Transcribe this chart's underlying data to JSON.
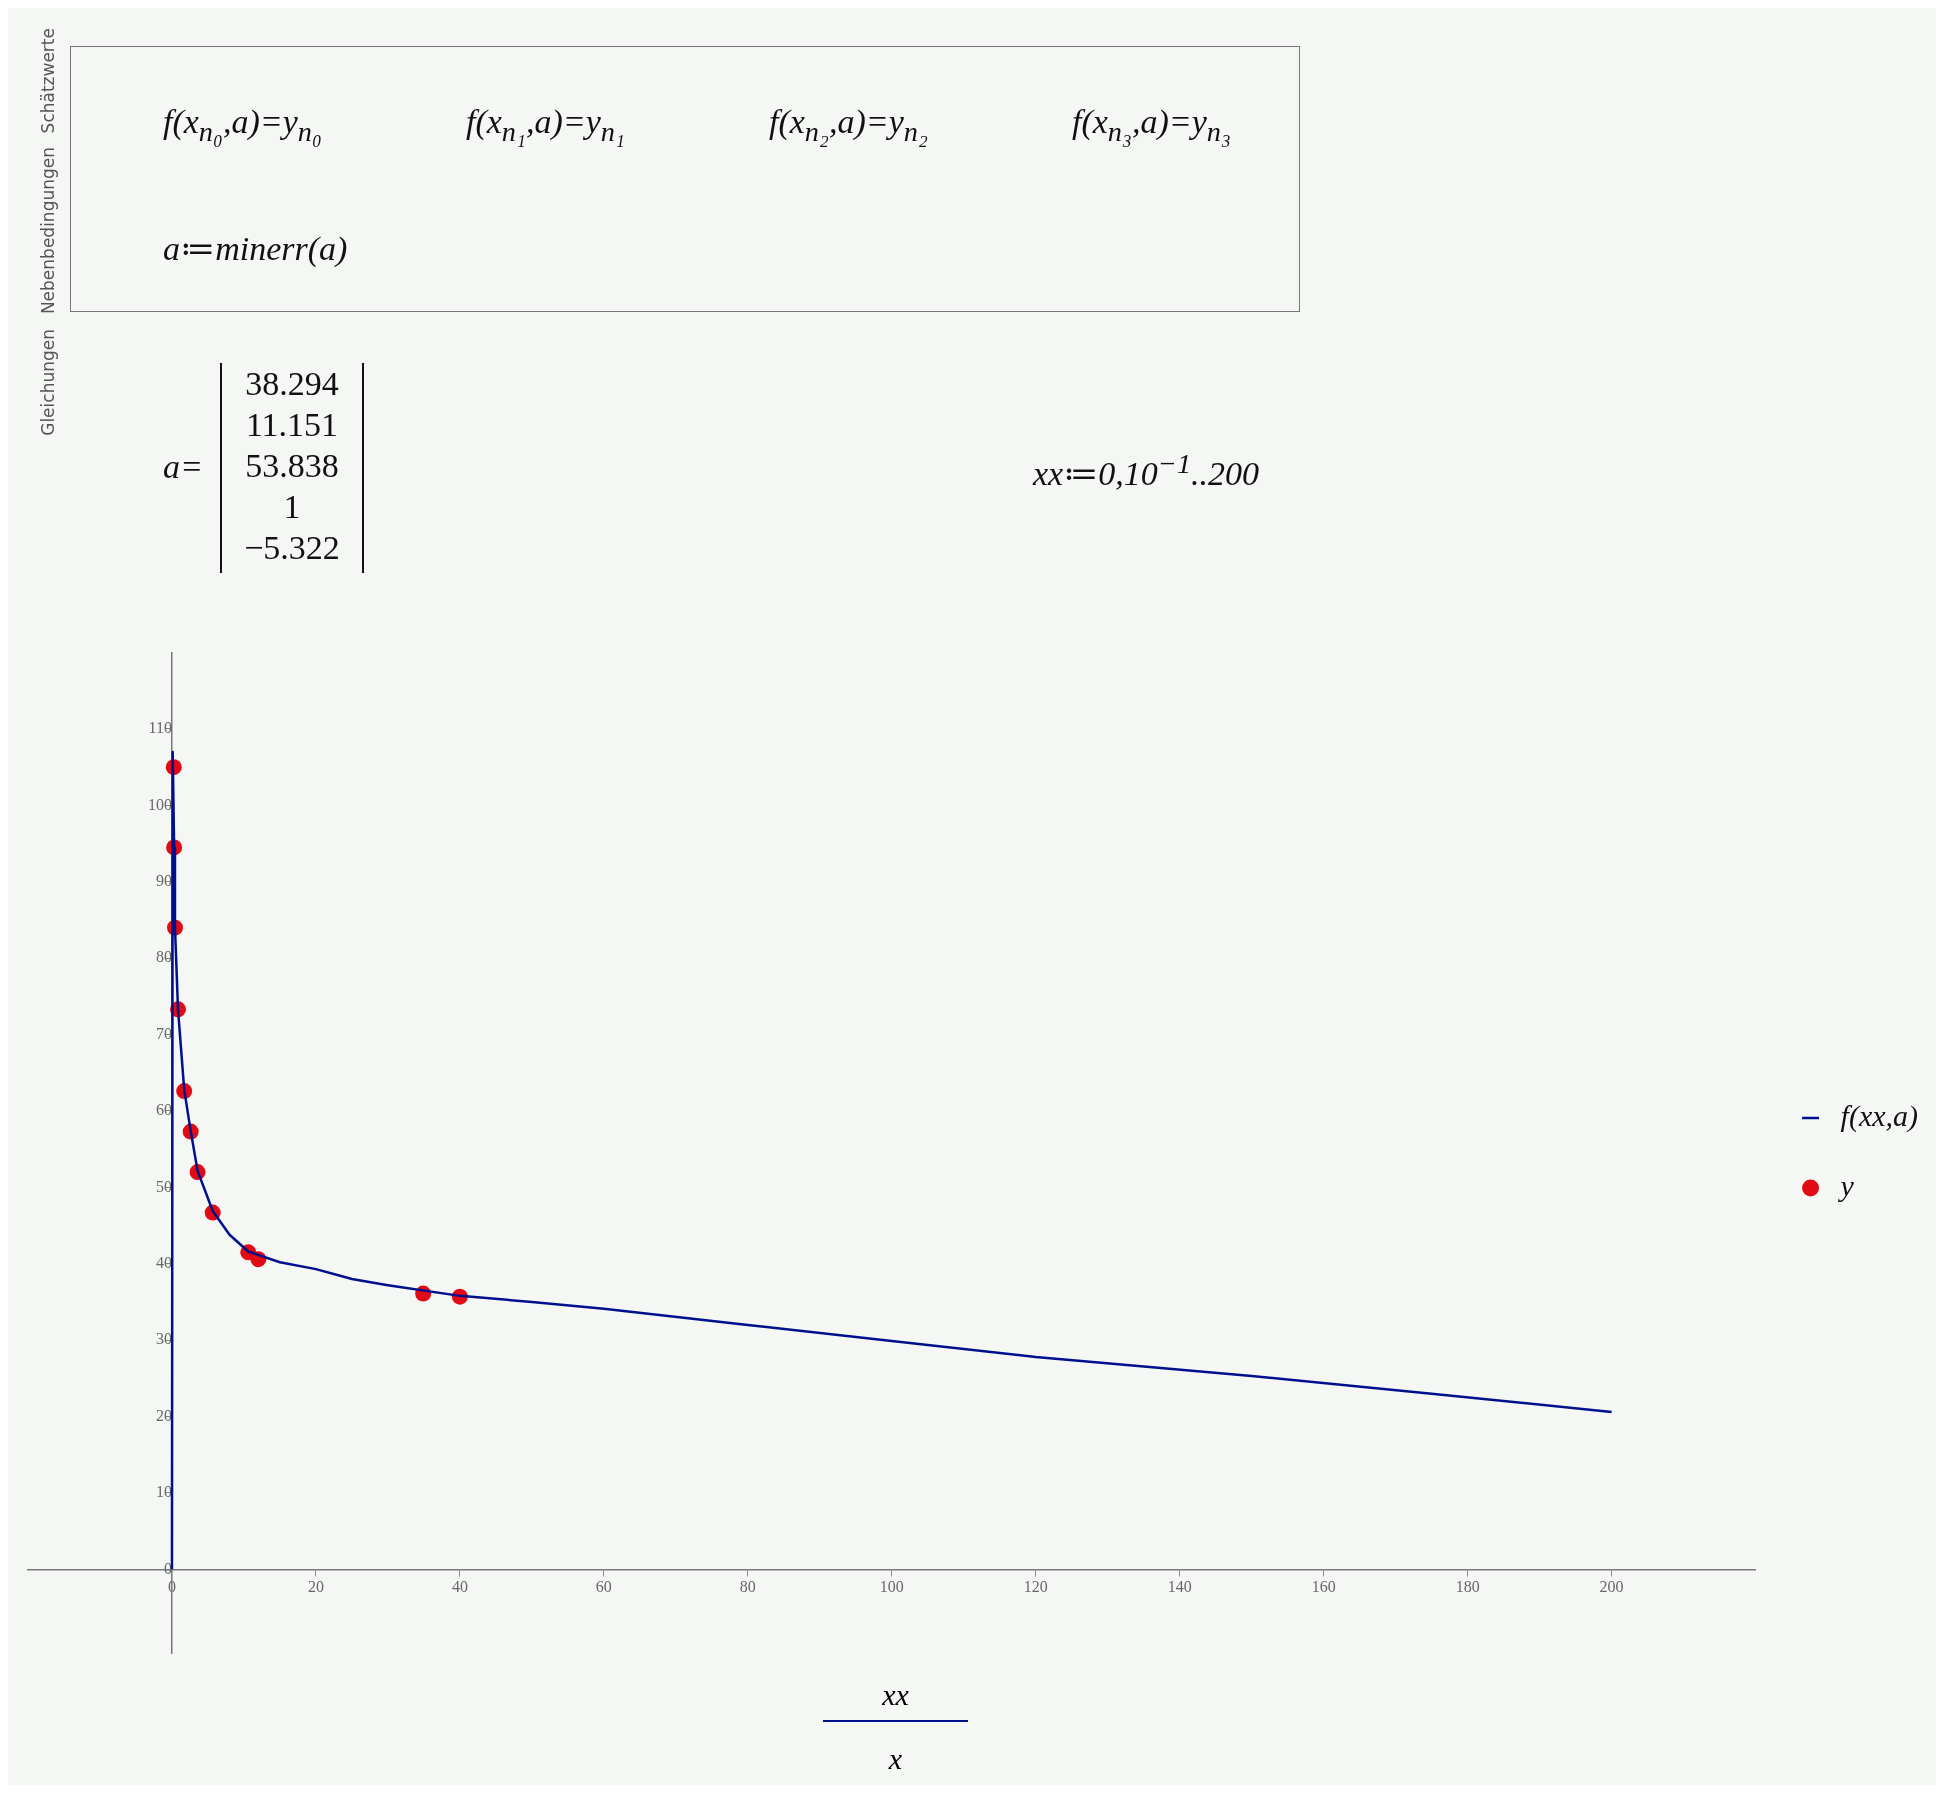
{
  "chart_data": {
    "type": "line",
    "xlabel": "xx",
    "xlim": [
      -20,
      220
    ],
    "ylim": [
      -11,
      120
    ],
    "xticks": [
      0,
      20,
      40,
      60,
      80,
      100,
      120,
      140,
      160,
      180,
      200
    ],
    "yticks": [
      0,
      10,
      20,
      30,
      40,
      50,
      60,
      70,
      80,
      90,
      100,
      110
    ],
    "grid": false,
    "legend": "right",
    "line_style": "solid",
    "series": [
      {
        "name": "f(xx,a)",
        "marker": "none",
        "color": "#000f8c",
        "x": [
          0,
          0.1,
          0.3,
          0.42,
          0.84,
          1.7,
          2.6,
          3.55,
          5.66,
          8,
          10.6,
          15,
          20,
          25,
          30,
          40,
          50,
          60,
          80,
          100,
          120,
          150,
          175,
          200
        ],
        "values": [
          0,
          107,
          94.5,
          84,
          73.3,
          62.8,
          57.4,
          52.2,
          46.9,
          43.8,
          41.6,
          40.2,
          39.3,
          38.0,
          37.2,
          35.8,
          35.0,
          34.1,
          32.0,
          29.9,
          27.8,
          25.3,
          23.0,
          20.6
        ]
      },
      {
        "name": "y",
        "type": "scatter",
        "marker": "circle",
        "color": "#e00b14",
        "x": [
          0.25,
          0.3,
          0.42,
          0.84,
          1.7,
          2.6,
          3.55,
          5.66,
          10.6,
          12,
          34.9,
          40
        ],
        "values": [
          105,
          94.5,
          84,
          73.3,
          62.6,
          57.3,
          52,
          46.7,
          41.5,
          40.6,
          36.1,
          35.7
        ]
      }
    ],
    "annotations": [
      "f(x$_{n₀}$,a)=y$_{n₀}$",
      "f(x$_{n₁}$,a)=y$_{n₁}$",
      "f(x$_{n₂}$,a)=y$_{n₂}$",
      "f(x$_{n₃}$,a)=y$_{n₃}$",
      "a≔minerr(a)",
      "a=",
      "38.294",
      "11.151",
      "53.838",
      "1",
      "−5.322",
      "xx≔0,10$^{−1}$..200",
      "x",
      "Schätzwerte",
      "Nebenbedingungen",
      "Gleichungen"
    ]
  }
}
